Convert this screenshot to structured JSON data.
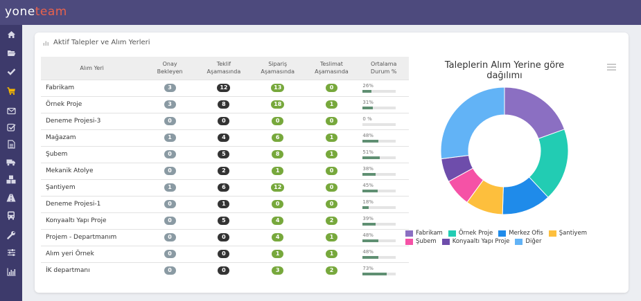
{
  "app": {
    "logo_part1": "yone",
    "logo_part2": "team"
  },
  "sidebar": {
    "items": [
      {
        "icon": "home-icon"
      },
      {
        "icon": "folder-open-icon"
      },
      {
        "icon": "check-icon"
      },
      {
        "icon": "cart-icon",
        "active": true
      },
      {
        "icon": "envelope-icon"
      },
      {
        "icon": "checkbox-icon"
      },
      {
        "icon": "file-icon"
      },
      {
        "icon": "truck-icon"
      },
      {
        "icon": "cubes-icon"
      },
      {
        "icon": "road-icon"
      },
      {
        "icon": "bus-icon"
      },
      {
        "icon": "wrench-icon"
      },
      {
        "icon": "sliders-icon"
      },
      {
        "icon": "bar-chart-icon"
      }
    ]
  },
  "panel": {
    "title": "Aktif Talepler ve Alım Yerleri"
  },
  "table": {
    "headers": {
      "name": "Alım Yeri",
      "c1": [
        "Onay",
        "Bekleyen"
      ],
      "c2": [
        "Teklif",
        "Aşamasında"
      ],
      "c3": [
        "Sipariş",
        "Aşamasında"
      ],
      "c4": [
        "Teslimat",
        "Aşamasında"
      ],
      "c5": [
        "Ortalama",
        "Durum %"
      ]
    },
    "rows": [
      {
        "name": "Fabrikam",
        "onay": "3",
        "teklif": "12",
        "siparis": "13",
        "teslimat": "0",
        "pct_label": "26%",
        "pct": 26
      },
      {
        "name": "Örnek Proje",
        "onay": "3",
        "teklif": "8",
        "siparis": "18",
        "teslimat": "1",
        "pct_label": "31%",
        "pct": 31
      },
      {
        "name": "Deneme Projesi-3",
        "onay": "0",
        "teklif": "0",
        "siparis": "0",
        "teslimat": "0",
        "pct_label": "0  %",
        "pct": 0
      },
      {
        "name": "Mağazam",
        "onay": "1",
        "teklif": "4",
        "siparis": "6",
        "teslimat": "1",
        "pct_label": "48%",
        "pct": 48
      },
      {
        "name": "Şubem",
        "onay": "0",
        "teklif": "5",
        "siparis": "8",
        "teslimat": "1",
        "pct_label": "51%",
        "pct": 51
      },
      {
        "name": "Mekanik Atolye",
        "onay": "0",
        "teklif": "2",
        "siparis": "1",
        "teslimat": "0",
        "pct_label": "38%",
        "pct": 38
      },
      {
        "name": "Şantiyem",
        "onay": "1",
        "teklif": "6",
        "siparis": "12",
        "teslimat": "0",
        "pct_label": "45%",
        "pct": 45
      },
      {
        "name": "Deneme Projesi-1",
        "onay": "0",
        "teklif": "1",
        "siparis": "0",
        "teslimat": "0",
        "pct_label": "18%",
        "pct": 18
      },
      {
        "name": "Konyaaltı Yapı Proje",
        "onay": "0",
        "teklif": "5",
        "siparis": "4",
        "teslimat": "2",
        "pct_label": "39%",
        "pct": 39
      },
      {
        "name": "Projem - Departmanım",
        "onay": "0",
        "teklif": "0",
        "siparis": "4",
        "teslimat": "1",
        "pct_label": "48%",
        "pct": 48
      },
      {
        "name": "Alım yeri Örnek",
        "onay": "0",
        "teklif": "0",
        "siparis": "1",
        "teslimat": "1",
        "pct_label": "48%",
        "pct": 48
      },
      {
        "name": "İK departmanı",
        "onay": "0",
        "teklif": "0",
        "siparis": "3",
        "teslimat": "2",
        "pct_label": "73%",
        "pct": 73
      }
    ]
  },
  "chart_data": {
    "type": "pie",
    "donut": true,
    "title": "Taleplerin Alım Yerine göre dağılımı",
    "slices": [
      {
        "label": "Fabrikam",
        "value": 19.5,
        "color": "#8b6fc2"
      },
      {
        "label": "Örnek Proje",
        "value": 18.5,
        "color": "#22ccb3"
      },
      {
        "label": "Merkez Ofis",
        "value": 12.5,
        "color": "#1f8bea"
      },
      {
        "label": "Şantiyem",
        "value": 9.5,
        "color": "#fdbf3d"
      },
      {
        "label": "Şubem",
        "value": 7,
        "color": "#f552a6"
      },
      {
        "label": "Konyaaltı Yapı Proje",
        "value": 6,
        "color": "#6e4dab"
      },
      {
        "label": "Diğer",
        "value": 27,
        "color": "#62b3f6"
      }
    ],
    "legend_rows": [
      [
        0,
        1,
        2,
        3
      ],
      [
        4,
        5,
        6
      ]
    ],
    "legend_position": "bottom"
  },
  "colors": {
    "topbar": "#4d4a7d",
    "sidebar": "#3d3a6b",
    "accent": "#e8624d",
    "active_icon": "#f5b700"
  }
}
